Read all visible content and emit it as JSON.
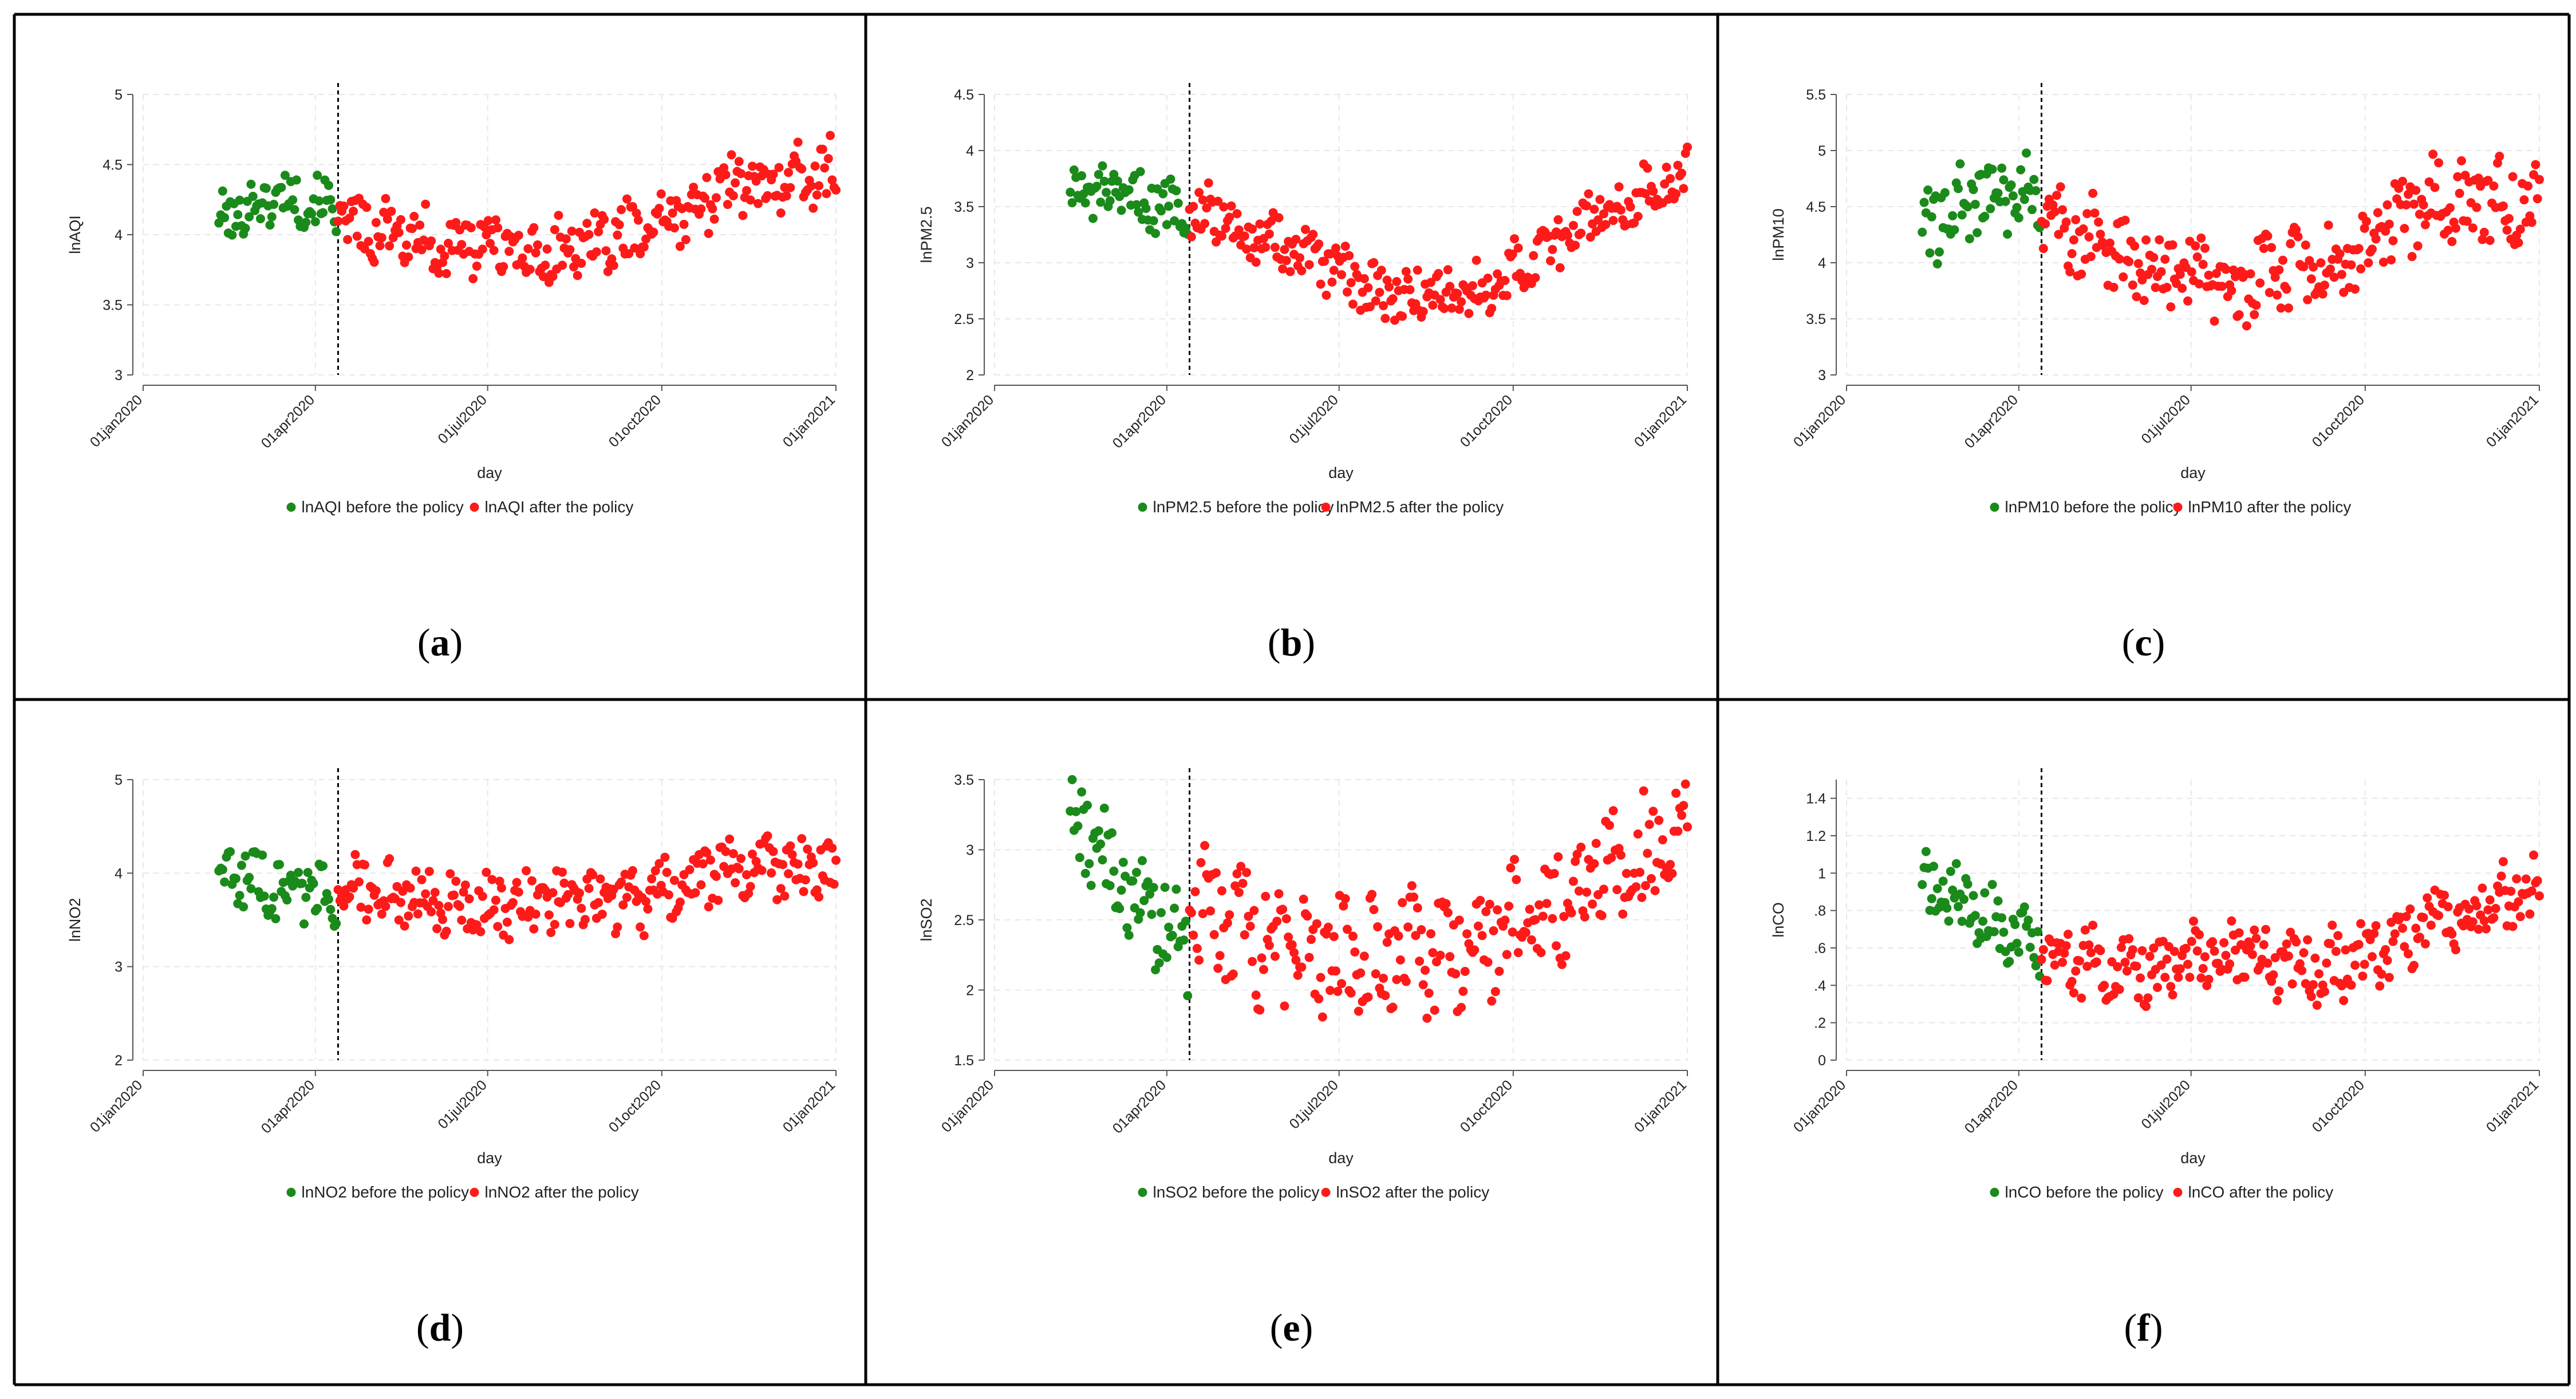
{
  "figure": {
    "colors": {
      "before": "#1a8a1a",
      "after": "#ff1a1a",
      "grid": "#e8e8e8",
      "axis": "#555555",
      "border": "#000000"
    }
  },
  "chart_data": [
    {
      "id": "a",
      "type": "scatter",
      "caption_open": "(",
      "caption_letter": "a",
      "caption_close": ")",
      "ylabel": "lnAQI",
      "xlabel": "day",
      "ylim": [
        3,
        5
      ],
      "yticks": [
        3,
        3.5,
        4,
        4.5,
        5
      ],
      "ytick_labels": [
        "3",
        "3.5",
        "4",
        "4.5",
        "5"
      ],
      "x_range_days": [
        0,
        366
      ],
      "xticks": [
        0,
        91,
        182,
        274,
        366
      ],
      "xtick_labels": [
        "01jan2020",
        "01apr2020",
        "01jul2020",
        "01oct2020",
        "01jan2021"
      ],
      "policy_day": 103,
      "legend": [
        "lnAQI before the policy",
        "lnAQI after the policy"
      ],
      "before_points": {
        "start_day": 40,
        "end_day": 102,
        "base": [
          4.1,
          4.28,
          4.2
        ],
        "amp": 0.16,
        "n": 63
      },
      "after_points": {
        "start_day": 103,
        "end_day": 366,
        "base": [
          4.12,
          3.95,
          3.85,
          4.0,
          4.35,
          4.45
        ],
        "amp": 0.2,
        "n": 263
      }
    },
    {
      "id": "b",
      "type": "scatter",
      "caption_open": "(",
      "caption_letter": "b",
      "caption_close": ")",
      "ylabel": "lnPM2.5",
      "xlabel": "day",
      "ylim": [
        2,
        4.5
      ],
      "yticks": [
        2,
        2.5,
        3,
        3.5,
        4,
        4.5
      ],
      "ytick_labels": [
        "2",
        "2.5",
        "3",
        "3.5",
        "4",
        "4.5"
      ],
      "x_range_days": [
        0,
        366
      ],
      "xticks": [
        0,
        91,
        182,
        274,
        366
      ],
      "xtick_labels": [
        "01jan2020",
        "01apr2020",
        "01jul2020",
        "01oct2020",
        "01jan2021"
      ],
      "policy_day": 103,
      "legend": [
        "lnPM2.5 before the policy",
        "lnPM2.5 after the policy"
      ],
      "before_points": {
        "start_day": 40,
        "end_day": 102,
        "base": [
          3.65,
          3.55,
          3.5
        ],
        "amp": 0.22,
        "n": 63
      },
      "after_points": {
        "start_day": 103,
        "end_day": 366,
        "base": [
          3.5,
          3.1,
          2.7,
          2.75,
          3.4,
          3.8
        ],
        "amp": 0.22,
        "n": 263
      }
    },
    {
      "id": "c",
      "type": "scatter",
      "caption_open": "(",
      "caption_letter": "c",
      "caption_close": ")",
      "ylabel": "lnPM10",
      "xlabel": "day",
      "ylim": [
        3,
        5.5
      ],
      "yticks": [
        3,
        3.5,
        4,
        4.5,
        5,
        5.5
      ],
      "ytick_labels": [
        "3",
        "3.5",
        "4",
        "4.5",
        "5",
        "5.5"
      ],
      "x_range_days": [
        0,
        366
      ],
      "xticks": [
        0,
        91,
        182,
        274,
        366
      ],
      "xtick_labels": [
        "01jan2020",
        "01apr2020",
        "01jul2020",
        "01oct2020",
        "01jan2021"
      ],
      "policy_day": 103,
      "legend": [
        "lnPM10 before the policy",
        "lnPM10 after the policy"
      ],
      "before_points": {
        "start_day": 40,
        "end_day": 102,
        "base": [
          4.3,
          4.6,
          4.65
        ],
        "amp": 0.3,
        "n": 63
      },
      "after_points": {
        "start_day": 103,
        "end_day": 366,
        "base": [
          4.4,
          4.0,
          3.8,
          4.0,
          4.6,
          4.5
        ],
        "amp": 0.32,
        "n": 263
      }
    },
    {
      "id": "d",
      "type": "scatter",
      "caption_open": "(",
      "caption_letter": "d",
      "caption_close": ")",
      "ylabel": "lnNO2",
      "xlabel": "day",
      "ylim": [
        2,
        5
      ],
      "yticks": [
        2,
        3,
        4,
        5
      ],
      "ytick_labels": [
        "2",
        "3",
        "4",
        "5"
      ],
      "x_range_days": [
        0,
        366
      ],
      "xticks": [
        0,
        91,
        182,
        274,
        366
      ],
      "xtick_labels": [
        "01jan2020",
        "01apr2020",
        "01jul2020",
        "01oct2020",
        "01jan2021"
      ],
      "policy_day": 103,
      "legend": [
        "lnNO2 before the policy",
        "lnNO2 after the policy"
      ],
      "before_points": {
        "start_day": 40,
        "end_day": 102,
        "base": [
          4.05,
          3.85,
          3.8
        ],
        "amp": 0.3,
        "n": 63
      },
      "after_points": {
        "start_day": 103,
        "end_day": 366,
        "base": [
          3.85,
          3.7,
          3.65,
          3.7,
          4.1,
          4.0
        ],
        "amp": 0.3,
        "n": 263
      }
    },
    {
      "id": "e",
      "type": "scatter",
      "caption_open": "(",
      "caption_letter": "e",
      "caption_close": ")",
      "ylabel": "lnSO2",
      "xlabel": "day",
      "ylim": [
        1.5,
        3.5
      ],
      "yticks": [
        1.5,
        2,
        2.5,
        3,
        3.5
      ],
      "ytick_labels": [
        "1.5",
        "2",
        "2.5",
        "3",
        "3.5"
      ],
      "x_range_days": [
        0,
        366
      ],
      "xticks": [
        0,
        91,
        182,
        274,
        366
      ],
      "xtick_labels": [
        "01jan2020",
        "01apr2020",
        "01jul2020",
        "01oct2020",
        "01jan2021"
      ],
      "policy_day": 103,
      "legend": [
        "lnSO2 before the policy",
        "lnSO2 after the policy"
      ],
      "before_points": {
        "start_day": 40,
        "end_day": 102,
        "base": [
          3.3,
          2.7,
          2.3
        ],
        "amp": 0.3,
        "n": 63
      },
      "after_points": {
        "start_day": 103,
        "end_day": 366,
        "base": [
          2.6,
          2.25,
          2.25,
          2.3,
          2.8,
          3.1
        ],
        "amp": 0.38,
        "n": 263
      }
    },
    {
      "id": "f",
      "type": "scatter",
      "caption_open": "(",
      "caption_letter": "f",
      "caption_close": ")",
      "ylabel": "lnCO",
      "xlabel": "day",
      "ylim": [
        0,
        1.5
      ],
      "yticks": [
        0,
        0.2,
        0.4,
        0.6,
        0.8,
        1,
        1.2,
        1.4
      ],
      "ytick_labels": [
        "0",
        ".2",
        ".4",
        ".6",
        ".8",
        "1",
        "1.2",
        "1.4"
      ],
      "x_range_days": [
        0,
        366
      ],
      "xticks": [
        0,
        91,
        182,
        274,
        366
      ],
      "xtick_labels": [
        "01jan2020",
        "01apr2020",
        "01jul2020",
        "01oct2020",
        "01jan2021"
      ],
      "policy_day": 103,
      "legend": [
        "lnCO before the policy",
        "lnCO after the policy"
      ],
      "before_points": {
        "start_day": 40,
        "end_day": 102,
        "base": [
          0.95,
          0.78,
          0.62
        ],
        "amp": 0.15,
        "n": 63
      },
      "after_points": {
        "start_day": 103,
        "end_day": 366,
        "base": [
          0.55,
          0.5,
          0.55,
          0.5,
          0.75,
          0.9
        ],
        "amp": 0.17,
        "n": 263
      }
    }
  ]
}
